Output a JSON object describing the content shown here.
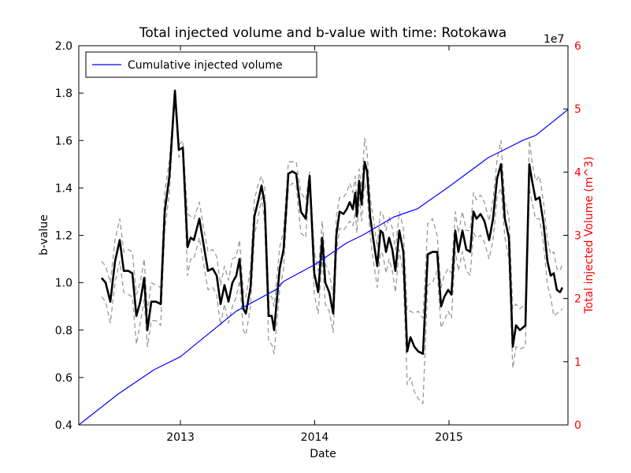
{
  "chart_data": {
    "type": "line",
    "title": "Total injected volume and b-value with time: Rotokawa",
    "x_label": "Date",
    "y_label": "b-value",
    "y2_label": "Total injected Volume (m^3)",
    "y2_offset_label": "1e7",
    "y2_color": "#ff0000",
    "legend": "upper left",
    "grid": false,
    "xlim": [
      2012.243,
      2015.886
    ],
    "xticks": [
      2013,
      2014,
      2015
    ],
    "ylim": [
      0.4,
      2.0
    ],
    "yticks": [
      {
        "value": 0.4,
        "label": "0.4"
      },
      0.6,
      0.8,
      {
        "value": 1.0,
        "label": "1.0"
      },
      1.2,
      1.4,
      1.6,
      1.8,
      {
        "value": 2.0,
        "label": "2.0"
      }
    ],
    "y2lim": [
      0,
      6
    ],
    "y2ticks": [
      0,
      1,
      2,
      3,
      4,
      5,
      6
    ],
    "x": [
      2012.413,
      2012.443,
      2012.478,
      2012.513,
      2012.548,
      2012.578,
      2012.613,
      2012.642,
      2012.672,
      2012.701,
      2012.73,
      2012.754,
      2012.783,
      2012.818,
      2012.853,
      2012.883,
      2012.918,
      2012.959,
      2012.988,
      2013.018,
      2013.053,
      2013.076,
      2013.1,
      2013.141,
      2013.17,
      2013.205,
      2013.24,
      2013.27,
      2013.299,
      2013.328,
      2013.358,
      2013.387,
      2013.416,
      2013.44,
      2013.469,
      2013.487,
      2013.522,
      2013.551,
      2013.581,
      2013.604,
      2013.628,
      2013.657,
      2013.68,
      2013.698,
      2013.739,
      2013.768,
      2013.804,
      2013.833,
      2013.862,
      2013.897,
      2013.933,
      2013.962,
      2013.997,
      2014.026,
      2014.056,
      2014.079,
      2014.108,
      2014.138,
      2014.161,
      2014.185,
      2014.214,
      2014.238,
      2014.261,
      2014.284,
      2014.302,
      2014.314,
      2014.331,
      2014.349,
      2014.372,
      2014.39,
      2014.413,
      2014.437,
      2014.466,
      2014.49,
      2014.507,
      2014.531,
      2014.554,
      2014.578,
      2014.601,
      2014.63,
      2014.66,
      2014.689,
      2014.713,
      2014.742,
      2014.771,
      2014.806,
      2014.842,
      2014.877,
      2014.912,
      2014.941,
      2014.965,
      2014.994,
      2015.018,
      2015.047,
      2015.07,
      2015.1,
      2015.129,
      2015.158,
      2015.182,
      2015.205,
      2015.235,
      2015.264,
      2015.299,
      2015.328,
      2015.358,
      2015.387,
      2015.416,
      2015.446,
      2015.475,
      2015.499,
      2015.528,
      2015.569,
      2015.598,
      2015.622,
      2015.645,
      2015.674,
      2015.704,
      2015.733,
      2015.757,
      2015.78,
      2015.803,
      2015.827,
      2015.844
    ],
    "series": [
      {
        "color": "#999999",
        "linestyle": "dashed",
        "linewidth": 1.3,
        "values": [
          1.09,
          1.07,
          1.0,
          1.18,
          1.27,
          1.13,
          1.14,
          1.13,
          0.95,
          1.0,
          1.1,
          0.88,
          1.0,
          0.99,
          0.98,
          1.38,
          1.52,
          1.82,
          1.58,
          1.6,
          1.29,
          1.28,
          1.27,
          1.34,
          1.24,
          1.13,
          1.14,
          1.11,
          0.99,
          1.07,
          1.01,
          1.1,
          1.11,
          1.18,
          0.96,
          0.94,
          1.06,
          1.35,
          1.42,
          1.45,
          1.4,
          0.95,
          0.94,
          0.9,
          1.15,
          1.22,
          1.51,
          1.51,
          1.51,
          1.38,
          1.35,
          1.47,
          1.13,
          1.05,
          1.26,
          1.08,
          1.04,
          0.95,
          1.28,
          1.36,
          1.36,
          1.38,
          1.42,
          1.38,
          1.45,
          1.35,
          1.48,
          1.4,
          1.61,
          1.55,
          1.36,
          1.27,
          1.15,
          1.3,
          1.29,
          1.22,
          1.28,
          1.23,
          1.14,
          1.3,
          1.23,
          0.88,
          0.88,
          0.87,
          0.88,
          0.85,
          1.25,
          1.27,
          1.2,
          0.98,
          1.03,
          1.06,
          1.04,
          1.3,
          1.21,
          1.3,
          1.22,
          1.22,
          1.38,
          1.35,
          1.37,
          1.34,
          1.26,
          1.35,
          1.52,
          1.6,
          1.34,
          1.28,
          0.89,
          0.91,
          0.89,
          0.91,
          1.6,
          1.5,
          1.43,
          1.45,
          1.34,
          1.18,
          1.12,
          1.13,
          1.06,
          1.05,
          1.08
        ]
      },
      {
        "color": "#999999",
        "linestyle": "dashed",
        "linewidth": 1.3,
        "values": [
          0.94,
          0.92,
          0.83,
          1.0,
          1.09,
          0.96,
          0.95,
          0.94,
          0.74,
          0.83,
          0.93,
          0.73,
          0.84,
          0.84,
          0.82,
          1.22,
          1.38,
          1.79,
          1.53,
          1.54,
          1.03,
          1.1,
          1.1,
          1.19,
          1.09,
          0.97,
          0.98,
          0.95,
          0.82,
          0.91,
          0.83,
          0.9,
          0.94,
          1.01,
          0.8,
          0.78,
          0.9,
          1.2,
          1.28,
          1.36,
          1.25,
          0.75,
          0.74,
          0.7,
          0.97,
          1.06,
          1.4,
          1.42,
          1.41,
          1.21,
          1.19,
          1.43,
          0.95,
          0.87,
          1.11,
          0.91,
          0.88,
          0.79,
          1.12,
          1.23,
          1.22,
          1.24,
          1.26,
          1.24,
          1.3,
          1.21,
          1.36,
          1.26,
          1.42,
          1.38,
          1.2,
          1.09,
          0.98,
          1.13,
          1.12,
          1.04,
          1.1,
          1.05,
          0.96,
          1.14,
          1.03,
          0.57,
          0.6,
          0.54,
          0.51,
          0.49,
          0.99,
          1.0,
          1.05,
          0.81,
          0.84,
          0.88,
          0.85,
          1.13,
          1.05,
          1.13,
          1.05,
          1.03,
          1.21,
          1.19,
          1.2,
          1.17,
          1.1,
          1.18,
          1.36,
          1.4,
          1.19,
          1.1,
          0.64,
          0.73,
          0.72,
          0.73,
          1.4,
          1.33,
          1.27,
          1.27,
          1.16,
          0.99,
          0.94,
          0.86,
          0.87,
          0.88,
          0.89
        ]
      },
      {
        "color": "#000000",
        "linestyle": "solid",
        "linewidth": 2.6,
        "values": [
          1.02,
          1.0,
          0.92,
          1.09,
          1.18,
          1.05,
          1.05,
          1.04,
          0.86,
          0.92,
          1.02,
          0.8,
          0.92,
          0.92,
          0.91,
          1.3,
          1.45,
          1.81,
          1.56,
          1.57,
          1.15,
          1.19,
          1.18,
          1.27,
          1.17,
          1.05,
          1.06,
          1.03,
          0.91,
          0.99,
          0.92,
          1.0,
          1.03,
          1.1,
          0.89,
          0.87,
          0.98,
          1.28,
          1.35,
          1.41,
          1.33,
          0.86,
          0.86,
          0.8,
          1.06,
          1.14,
          1.46,
          1.47,
          1.46,
          1.3,
          1.27,
          1.45,
          1.04,
          0.96,
          1.19,
          1.0,
          0.96,
          0.87,
          1.2,
          1.3,
          1.29,
          1.31,
          1.34,
          1.31,
          1.38,
          1.28,
          1.43,
          1.33,
          1.51,
          1.47,
          1.28,
          1.18,
          1.07,
          1.22,
          1.21,
          1.13,
          1.19,
          1.14,
          1.05,
          1.22,
          1.13,
          0.71,
          0.77,
          0.73,
          0.71,
          0.7,
          1.12,
          1.13,
          1.13,
          0.9,
          0.94,
          0.97,
          0.95,
          1.22,
          1.13,
          1.22,
          1.14,
          1.13,
          1.3,
          1.27,
          1.29,
          1.26,
          1.18,
          1.27,
          1.44,
          1.5,
          1.27,
          1.19,
          0.73,
          0.82,
          0.8,
          0.82,
          1.5,
          1.42,
          1.35,
          1.36,
          1.25,
          1.09,
          1.03,
          1.04,
          0.97,
          0.96,
          0.98
        ]
      },
      {
        "name": "Cumulative injected volume",
        "color": "#0000ff",
        "linestyle": "solid",
        "linewidth": 1.2,
        "axis": "y2",
        "x": [
          2012.243,
          2012.537,
          2012.801,
          2013.0,
          2013.416,
          2013.71,
          2013.768,
          2014.003,
          2014.238,
          2014.355,
          2014.589,
          2014.765,
          2015.0,
          2015.293,
          2015.557,
          2015.645,
          2015.886
        ],
        "values": [
          0,
          0.49,
          0.87,
          1.08,
          1.8,
          2.14,
          2.27,
          2.54,
          2.88,
          3.0,
          3.29,
          3.42,
          3.77,
          4.23,
          4.51,
          4.58,
          4.99
        ]
      }
    ]
  }
}
